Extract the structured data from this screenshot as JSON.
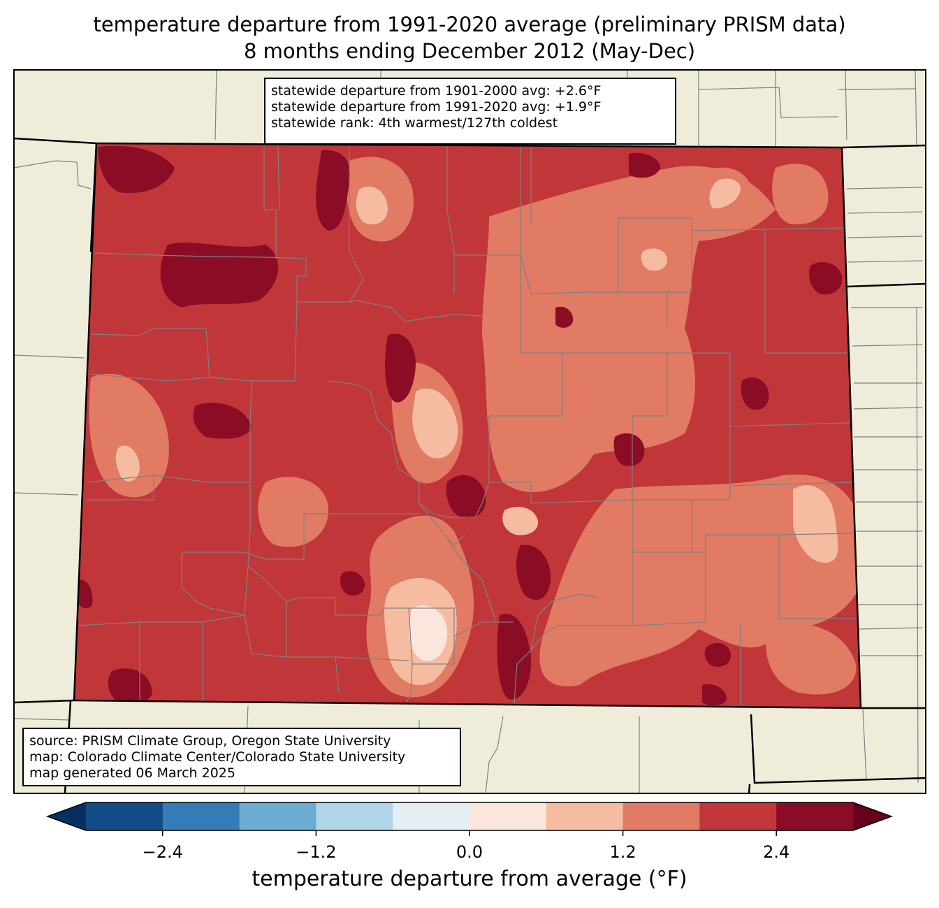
{
  "title_line1": "temperature departure from 1991-2020 average (preliminary PRISM data)",
  "title_line2": "8 months ending December 2012 (May-Dec)",
  "stats": {
    "line1": "statewide departure from 1901-2000 avg: +2.6°F",
    "line2": "statewide departure from 1991-2020 avg: +1.9°F",
    "line3": "statewide rank: 4th warmest/127th coldest"
  },
  "credits": {
    "line1": "source: PRISM Climate Group, Oregon State University",
    "line2": "map: Colorado Climate Center/Colorado State University",
    "line3": "map generated 06 March 2025"
  },
  "colors": {
    "land_background": "#efedda",
    "bin_colors": [
      "#053061",
      "#134b87",
      "#327cb7",
      "#6bacd0",
      "#b0d5e6",
      "#e4eef3",
      "#fbe6dc",
      "#f6bca1",
      "#e17b63",
      "#c13639",
      "#8b0c25",
      "#67001f"
    ]
  },
  "colorbar": {
    "label": "temperature departure from average (°F)",
    "min": -3.0,
    "max": 3.0,
    "step": 0.6,
    "ticks": [
      {
        "value": -2.4,
        "label": "−2.4"
      },
      {
        "value": -1.2,
        "label": "−1.2"
      },
      {
        "value": 0.0,
        "label": "0.0"
      },
      {
        "value": 1.2,
        "label": "1.2"
      },
      {
        "value": 2.4,
        "label": "2.4"
      }
    ]
  },
  "chart_data": {
    "type": "heatmap",
    "title": "temperature departure from 1991-2020 average (preliminary PRISM data) — 8 months ending December 2012 (May-Dec)",
    "units": "°F",
    "region": "Colorado",
    "statewide_departure_1901_2000": 2.6,
    "statewide_departure_1991_2020": 1.9,
    "statewide_rank_warmest": 4,
    "statewide_rank_coldest": 127,
    "levels": [
      -3.0,
      -2.4,
      -1.8,
      -1.2,
      -0.6,
      0.0,
      0.6,
      1.2,
      1.8,
      2.4,
      3.0
    ],
    "background_level": 2.1
  }
}
